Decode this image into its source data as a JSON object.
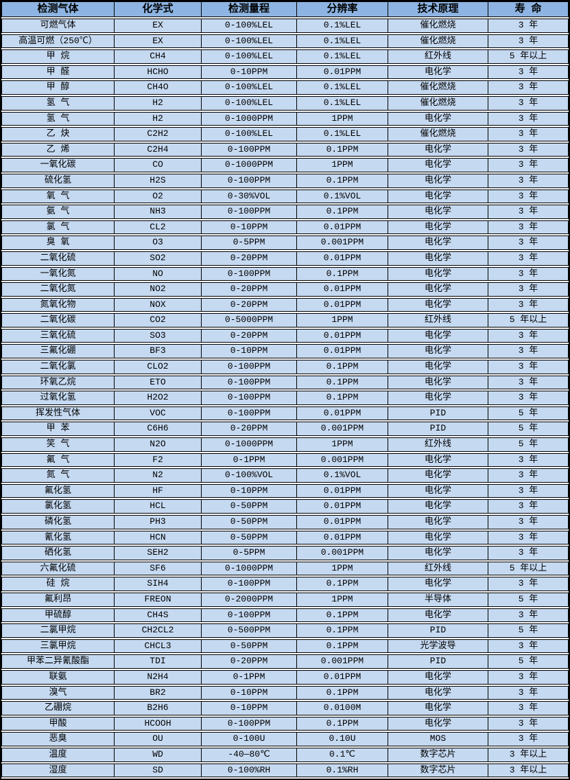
{
  "colors": {
    "header_bg": "#8DB4E2",
    "row_bg": "#C5D9F1",
    "border_color": "#000000",
    "page_bg": "#FFFFFF"
  },
  "table": {
    "columns": [
      {
        "key": "gas",
        "label": "检测气体"
      },
      {
        "key": "formula",
        "label": "化学式"
      },
      {
        "key": "range",
        "label": "检测量程"
      },
      {
        "key": "resolution",
        "label": "分辨率"
      },
      {
        "key": "principle",
        "label": "技术原理"
      },
      {
        "key": "lifespan",
        "label": "寿 命"
      }
    ],
    "rows": [
      {
        "gas": "可燃气体",
        "formula": "EX",
        "range": "0-100%LEL",
        "resolution": "0.1%LEL",
        "principle": "催化燃烧",
        "lifespan": "3 年"
      },
      {
        "gas": "高温可燃（250℃）",
        "formula": "EX",
        "range": "0-100%LEL",
        "resolution": "0.1%LEL",
        "principle": "催化燃烧",
        "lifespan": "3 年"
      },
      {
        "gas": "甲 烷",
        "formula": "CH4",
        "range": "0-100%LEL",
        "resolution": "0.1%LEL",
        "principle": "红外线",
        "lifespan": "5 年以上"
      },
      {
        "gas": "甲 醛",
        "formula": "HCHO",
        "range": "0-10PPM",
        "resolution": "0.01PPM",
        "principle": "电化学",
        "lifespan": "3 年"
      },
      {
        "gas": "甲 醇",
        "formula": "CH4O",
        "range": "0-100%LEL",
        "resolution": "0.1%LEL",
        "principle": "催化燃烧",
        "lifespan": "3 年"
      },
      {
        "gas": "氢 气",
        "formula": "H2",
        "range": "0-100%LEL",
        "resolution": "0.1%LEL",
        "principle": "催化燃烧",
        "lifespan": "3 年"
      },
      {
        "gas": "氢 气",
        "formula": "H2",
        "range": "0-1000PPM",
        "resolution": "1PPM",
        "principle": "电化学",
        "lifespan": "3 年"
      },
      {
        "gas": "乙 炔",
        "formula": "C2H2",
        "range": "0-100%LEL",
        "resolution": "0.1%LEL",
        "principle": "催化燃烧",
        "lifespan": "3 年"
      },
      {
        "gas": "乙 烯",
        "formula": "C2H4",
        "range": "0-100PPM",
        "resolution": "0.1PPM",
        "principle": "电化学",
        "lifespan": "3 年"
      },
      {
        "gas": "一氧化碳",
        "formula": "CO",
        "range": "0-1000PPM",
        "resolution": "1PPM",
        "principle": "电化学",
        "lifespan": "3 年"
      },
      {
        "gas": "硫化氢",
        "formula": "H2S",
        "range": "0-100PPM",
        "resolution": "0.1PPM",
        "principle": "电化学",
        "lifespan": "3 年"
      },
      {
        "gas": "氧 气",
        "formula": "O2",
        "range": "0-30%VOL",
        "resolution": "0.1%VOL",
        "principle": "电化学",
        "lifespan": "3 年"
      },
      {
        "gas": "氨 气",
        "formula": "NH3",
        "range": "0-100PPM",
        "resolution": "0.1PPM",
        "principle": "电化学",
        "lifespan": "3 年"
      },
      {
        "gas": "氯 气",
        "formula": "CL2",
        "range": "0-10PPM",
        "resolution": "0.01PPM",
        "principle": "电化学",
        "lifespan": "3 年"
      },
      {
        "gas": "臭 氧",
        "formula": "O3",
        "range": "0-5PPM",
        "resolution": "0.001PPM",
        "principle": "电化学",
        "lifespan": "3 年"
      },
      {
        "gas": "二氧化硫",
        "formula": "SO2",
        "range": "0-20PPM",
        "resolution": "0.01PPM",
        "principle": "电化学",
        "lifespan": "3 年"
      },
      {
        "gas": "一氧化氮",
        "formula": "NO",
        "range": "0-100PPM",
        "resolution": "0.1PPM",
        "principle": "电化学",
        "lifespan": "3 年"
      },
      {
        "gas": "二氧化氮",
        "formula": "NO2",
        "range": "0-20PPM",
        "resolution": "0.01PPM",
        "principle": "电化学",
        "lifespan": "3 年"
      },
      {
        "gas": "氮氧化物",
        "formula": "NOX",
        "range": "0-20PPM",
        "resolution": "0.01PPM",
        "principle": "电化学",
        "lifespan": "3 年"
      },
      {
        "gas": "二氧化碳",
        "formula": "CO2",
        "range": "0-5000PPM",
        "resolution": "1PPM",
        "principle": "红外线",
        "lifespan": "5 年以上"
      },
      {
        "gas": "三氧化硫",
        "formula": "SO3",
        "range": "0-20PPM",
        "resolution": "0.01PPM",
        "principle": "电化学",
        "lifespan": "3 年"
      },
      {
        "gas": "三氟化硼",
        "formula": "BF3",
        "range": "0-10PPM",
        "resolution": "0.01PPM",
        "principle": "电化学",
        "lifespan": "3 年"
      },
      {
        "gas": "二氧化氯",
        "formula": "CLO2",
        "range": "0-100PPM",
        "resolution": "0.1PPM",
        "principle": "电化学",
        "lifespan": "3 年"
      },
      {
        "gas": "环氧乙烷",
        "formula": "ETO",
        "range": "0-100PPM",
        "resolution": "0.1PPM",
        "principle": "电化学",
        "lifespan": "3 年"
      },
      {
        "gas": "过氧化氢",
        "formula": "H2O2",
        "range": "0-100PPM",
        "resolution": "0.1PPM",
        "principle": "电化学",
        "lifespan": "3 年"
      },
      {
        "gas": "挥发性气体",
        "formula": "VOC",
        "range": "0-100PPM",
        "resolution": "0.01PPM",
        "principle": "PID",
        "lifespan": "5 年"
      },
      {
        "gas": "甲 苯",
        "formula": "C6H6",
        "range": "0-20PPM",
        "resolution": "0.001PPM",
        "principle": "PID",
        "lifespan": "5 年"
      },
      {
        "gas": "笑 气",
        "formula": "N2O",
        "range": "0-1000PPM",
        "resolution": "1PPM",
        "principle": "红外线",
        "lifespan": "5 年"
      },
      {
        "gas": "氟 气",
        "formula": "F2",
        "range": "0-1PPM",
        "resolution": "0.001PPM",
        "principle": "电化学",
        "lifespan": "3 年"
      },
      {
        "gas": "氮 气",
        "formula": "N2",
        "range": "0-100%VOL",
        "resolution": "0.1%VOL",
        "principle": "电化学",
        "lifespan": "3 年"
      },
      {
        "gas": "氟化氢",
        "formula": "HF",
        "range": "0-10PPM",
        "resolution": "0.01PPM",
        "principle": "电化学",
        "lifespan": "3 年"
      },
      {
        "gas": "氯化氢",
        "formula": "HCL",
        "range": "0-50PPM",
        "resolution": "0.01PPM",
        "principle": "电化学",
        "lifespan": "3 年"
      },
      {
        "gas": "磷化氢",
        "formula": "PH3",
        "range": "0-50PPM",
        "resolution": "0.01PPM",
        "principle": "电化学",
        "lifespan": "3 年"
      },
      {
        "gas": "氰化氢",
        "formula": "HCN",
        "range": "0-50PPM",
        "resolution": "0.01PPM",
        "principle": "电化学",
        "lifespan": "3 年"
      },
      {
        "gas": "硒化氢",
        "formula": "SEH2",
        "range": "0-5PPM",
        "resolution": "0.001PPM",
        "principle": "电化学",
        "lifespan": "3 年"
      },
      {
        "gas": "六氟化硫",
        "formula": "SF6",
        "range": "0-1000PPM",
        "resolution": "1PPM",
        "principle": "红外线",
        "lifespan": "5 年以上"
      },
      {
        "gas": "硅 烷",
        "formula": "SIH4",
        "range": "0-100PPM",
        "resolution": "0.1PPM",
        "principle": "电化学",
        "lifespan": "3 年"
      },
      {
        "gas": "氟利昂",
        "formula": "FREON",
        "range": "0-2000PPM",
        "resolution": "1PPM",
        "principle": "半导体",
        "lifespan": "5 年"
      },
      {
        "gas": "甲硫醇",
        "formula": "CH4S",
        "range": "0-100PPM",
        "resolution": "0.1PPM",
        "principle": "电化学",
        "lifespan": "3 年"
      },
      {
        "gas": "二氯甲烷",
        "formula": "CH2CL2",
        "range": "0-500PPM",
        "resolution": "0.1PPM",
        "principle": "PID",
        "lifespan": "5 年"
      },
      {
        "gas": "三氯甲烷",
        "formula": "CHCL3",
        "range": "0-50PPM",
        "resolution": "0.1PPM",
        "principle": "光学波导",
        "lifespan": "3 年"
      },
      {
        "gas": "甲苯二异氰酸酯",
        "formula": "TDI",
        "range": "0-20PPM",
        "resolution": "0.001PPM",
        "principle": "PID",
        "lifespan": "5 年"
      },
      {
        "gas": "联氨",
        "formula": "N2H4",
        "range": "0-1PPM",
        "resolution": "0.01PPM",
        "principle": "电化学",
        "lifespan": "3 年"
      },
      {
        "gas": "溴气",
        "formula": "BR2",
        "range": "0-10PPM",
        "resolution": "0.1PPM",
        "principle": "电化学",
        "lifespan": "3 年"
      },
      {
        "gas": "乙硼烷",
        "formula": "B2H6",
        "range": "0-10PPM",
        "resolution": "0.0100M",
        "principle": "电化学",
        "lifespan": "3 年"
      },
      {
        "gas": "甲酸",
        "formula": "HCOOH",
        "range": "0-100PPM",
        "resolution": "0.1PPM",
        "principle": "电化学",
        "lifespan": "3 年"
      },
      {
        "gas": "恶臭",
        "formula": "OU",
        "range": "0-100U",
        "resolution": "0.10U",
        "principle": "MOS",
        "lifespan": "3 年"
      },
      {
        "gas": "温度",
        "formula": "WD",
        "range": "-40—80℃",
        "resolution": "0.1℃",
        "principle": "数字芯片",
        "lifespan": "3 年以上"
      },
      {
        "gas": "湿度",
        "formula": "SD",
        "range": "0-100%RH",
        "resolution": "0.1%RH",
        "principle": "数字芯片",
        "lifespan": "3 年以上"
      }
    ]
  }
}
